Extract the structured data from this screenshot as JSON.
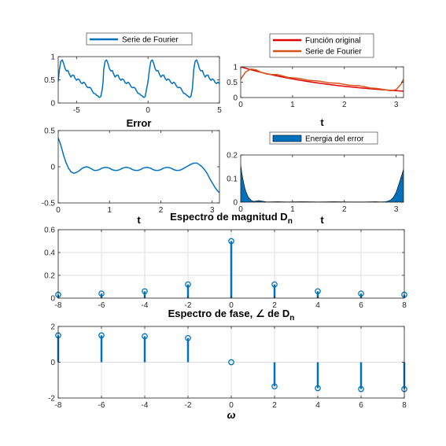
{
  "colors": {
    "blue": "#0072bd",
    "red": "#e00000",
    "orange": "#d95319",
    "axis": "#262626",
    "grid": "#dfdfdf"
  },
  "chart_data": [
    {
      "id": "p1",
      "type": "line",
      "xlim": [
        -6.2832,
        5
      ],
      "ylim": [
        0,
        1
      ],
      "xticks": [
        -5,
        0,
        5
      ],
      "yticks": [
        0,
        0.5,
        1
      ],
      "xticklabels": [
        "-5",
        "0",
        "5"
      ],
      "yticklabels": [
        "0",
        "0.5",
        "1"
      ],
      "grid": false,
      "legend": "above",
      "series": [
        {
          "name": "Serie de Fourier",
          "color": "#0072bd",
          "x": [
            -6.283,
            -6.2,
            -6.1,
            -6.0,
            -5.9,
            -5.8,
            -5.7,
            -5.6,
            -5.5,
            -5.4,
            -5.3,
            -5.2,
            -5.1,
            -5.0,
            -4.9,
            -4.8,
            -4.7,
            -4.6,
            -4.5,
            -4.4,
            -4.3,
            -4.2,
            -4.1,
            -4.0,
            -3.9,
            -3.8,
            -3.7,
            -3.6,
            -3.5,
            -3.4,
            -3.3,
            -3.2,
            -3.142,
            -3.1,
            -3.0,
            -2.9,
            -2.8,
            -2.7,
            -2.6,
            -2.5,
            -2.4,
            -2.3,
            -2.2,
            -2.1,
            -2.0,
            -1.9,
            -1.8,
            -1.7,
            -1.6,
            -1.5,
            -1.4,
            -1.3,
            -1.2,
            -1.1,
            -1.0,
            -0.9,
            -0.8,
            -0.7,
            -0.6,
            -0.5,
            -0.4,
            -0.3,
            -0.2,
            -0.1,
            0.0,
            0.1,
            0.2,
            0.3,
            0.4,
            0.5,
            0.6,
            0.7,
            0.8,
            0.9,
            1.0,
            1.1,
            1.2,
            1.3,
            1.4,
            1.5,
            1.6,
            1.7,
            1.8,
            1.9,
            2.0,
            2.1,
            2.2,
            2.3,
            2.4,
            2.5,
            2.6,
            2.7,
            2.8,
            2.9,
            3.0,
            3.1,
            3.142,
            3.2,
            3.3,
            3.4,
            3.5,
            3.6,
            3.7,
            3.8,
            3.9,
            4.0,
            4.1,
            4.2,
            4.3,
            4.4,
            4.5,
            4.6,
            4.7,
            4.8,
            4.9,
            5.0
          ],
          "y": [
            0.46,
            0.72,
            0.9,
            0.93,
            0.85,
            0.74,
            0.69,
            0.7,
            0.62,
            0.56,
            0.6,
            0.6,
            0.53,
            0.49,
            0.52,
            0.5,
            0.44,
            0.42,
            0.45,
            0.42,
            0.36,
            0.33,
            0.34,
            0.32,
            0.26,
            0.21,
            0.2,
            0.17,
            0.15,
            0.12,
            0.14,
            0.3,
            0.46,
            0.72,
            0.9,
            0.93,
            0.85,
            0.74,
            0.69,
            0.7,
            0.62,
            0.56,
            0.6,
            0.6,
            0.53,
            0.49,
            0.52,
            0.5,
            0.44,
            0.42,
            0.45,
            0.42,
            0.36,
            0.33,
            0.34,
            0.32,
            0.26,
            0.21,
            0.2,
            0.17,
            0.15,
            0.12,
            0.14,
            0.3,
            0.46,
            0.72,
            0.9,
            0.93,
            0.85,
            0.74,
            0.69,
            0.7,
            0.62,
            0.56,
            0.6,
            0.6,
            0.53,
            0.49,
            0.52,
            0.5,
            0.44,
            0.42,
            0.45,
            0.42,
            0.36,
            0.33,
            0.34,
            0.32,
            0.26,
            0.21,
            0.2,
            0.17,
            0.15,
            0.12,
            0.14,
            0.3,
            0.46,
            0.72,
            0.9,
            0.93,
            0.85,
            0.74,
            0.69,
            0.7,
            0.62,
            0.56,
            0.6,
            0.6,
            0.53,
            0.49,
            0.52,
            0.5,
            0.44,
            0.42,
            0.45,
            0.42
          ]
        }
      ]
    },
    {
      "id": "p2",
      "type": "line",
      "xlim": [
        0,
        3.1416
      ],
      "ylim": [
        0,
        1
      ],
      "xticks": [
        0,
        1,
        2,
        3
      ],
      "yticks": [
        0,
        0.5,
        1
      ],
      "xticklabels": [
        "0",
        "1",
        "2",
        "3"
      ],
      "yticklabels": [
        "0",
        "0.5",
        "1"
      ],
      "xlabel": "t",
      "grid": false,
      "legend": "above",
      "series": [
        {
          "name": "Función original",
          "color": "#e00000",
          "x": [
            0,
            0.157,
            0.314,
            0.471,
            0.628,
            0.785,
            0.942,
            1.1,
            1.257,
            1.414,
            1.571,
            1.728,
            1.885,
            2.042,
            2.199,
            2.356,
            2.513,
            2.67,
            2.827,
            2.985,
            3.142
          ],
          "y": [
            1.0,
            0.924,
            0.855,
            0.79,
            0.73,
            0.675,
            0.624,
            0.577,
            0.533,
            0.493,
            0.456,
            0.421,
            0.389,
            0.36,
            0.333,
            0.307,
            0.284,
            0.263,
            0.243,
            0.224,
            0.208
          ]
        },
        {
          "name": "Serie de Fourier",
          "color": "#d95319",
          "x": [
            0.0,
            0.1,
            0.2,
            0.3,
            0.4,
            0.5,
            0.6,
            0.7,
            0.8,
            0.9,
            1.0,
            1.1,
            1.2,
            1.3,
            1.4,
            1.5,
            1.6,
            1.7,
            1.8,
            1.9,
            2.0,
            2.1,
            2.2,
            2.3,
            2.4,
            2.5,
            2.6,
            2.7,
            2.8,
            2.9,
            3.0,
            3.1,
            3.142
          ],
          "y": [
            0.6,
            0.84,
            0.93,
            0.9,
            0.82,
            0.77,
            0.75,
            0.75,
            0.71,
            0.66,
            0.64,
            0.63,
            0.6,
            0.56,
            0.55,
            0.54,
            0.51,
            0.48,
            0.47,
            0.46,
            0.43,
            0.4,
            0.39,
            0.38,
            0.35,
            0.31,
            0.3,
            0.28,
            0.25,
            0.22,
            0.26,
            0.45,
            0.6
          ]
        }
      ]
    },
    {
      "id": "p3",
      "type": "line",
      "title": "Error",
      "xlim": [
        0,
        3.1416
      ],
      "ylim": [
        -0.5,
        0.5
      ],
      "xticks": [
        0,
        1,
        2,
        3
      ],
      "yticks": [
        -0.5,
        0,
        0.5
      ],
      "xticklabels": [
        "0",
        "1",
        "2",
        "3"
      ],
      "yticklabels": [
        "-0.5",
        "0",
        "0.5"
      ],
      "xlabel": "t",
      "grid": false,
      "series": [
        {
          "color": "#0072bd",
          "x": [
            0.0,
            0.05,
            0.1,
            0.15,
            0.2,
            0.25,
            0.3,
            0.35,
            0.4,
            0.45,
            0.5,
            0.55,
            0.6,
            0.65,
            0.7,
            0.75,
            0.8,
            0.85,
            0.9,
            0.95,
            1.0,
            1.05,
            1.1,
            1.15,
            1.2,
            1.25,
            1.3,
            1.35,
            1.4,
            1.45,
            1.5,
            1.55,
            1.6,
            1.65,
            1.7,
            1.75,
            1.8,
            1.85,
            1.9,
            1.95,
            2.0,
            2.05,
            2.1,
            2.15,
            2.2,
            2.25,
            2.3,
            2.35,
            2.4,
            2.45,
            2.5,
            2.55,
            2.6,
            2.65,
            2.7,
            2.75,
            2.8,
            2.85,
            2.9,
            2.95,
            3.0,
            3.05,
            3.1,
            3.142
          ],
          "y": [
            0.4,
            0.3,
            0.17,
            0.06,
            -0.02,
            -0.07,
            -0.09,
            -0.08,
            -0.06,
            -0.03,
            -0.01,
            0.0,
            -0.01,
            -0.03,
            -0.05,
            -0.05,
            -0.04,
            -0.02,
            -0.01,
            -0.01,
            -0.02,
            -0.04,
            -0.05,
            -0.05,
            -0.04,
            -0.02,
            -0.01,
            -0.01,
            -0.02,
            -0.04,
            -0.05,
            -0.05,
            -0.04,
            -0.02,
            -0.01,
            -0.01,
            -0.02,
            -0.04,
            -0.05,
            -0.05,
            -0.04,
            -0.02,
            -0.01,
            -0.01,
            -0.02,
            -0.04,
            -0.05,
            -0.05,
            -0.04,
            -0.02,
            0.0,
            0.02,
            0.04,
            0.05,
            0.05,
            0.03,
            0.0,
            -0.04,
            -0.09,
            -0.16,
            -0.22,
            -0.28,
            -0.33,
            -0.36
          ]
        }
      ]
    },
    {
      "id": "p4",
      "type": "area",
      "xlim": [
        0,
        3.1416
      ],
      "ylim": [
        0,
        0.2
      ],
      "xticks": [
        0,
        1,
        2,
        3
      ],
      "yticks": [
        0,
        0.1,
        0.2
      ],
      "xticklabels": [
        "0",
        "1",
        "2",
        "3"
      ],
      "yticklabels": [
        "0",
        "0.1",
        "0.2"
      ],
      "xlabel": "t",
      "grid": false,
      "legend": "above",
      "series": [
        {
          "name": "Energia del error",
          "color": "#0072bd",
          "x": [
            0,
            0.02,
            0.05,
            0.08,
            0.1,
            0.15,
            0.2,
            0.25,
            0.3,
            0.35,
            0.4,
            0.5,
            0.7,
            0.9,
            1.2,
            1.5,
            1.8,
            2.1,
            2.4,
            2.6,
            2.7,
            2.8,
            2.85,
            2.9,
            2.95,
            3.0,
            3.05,
            3.1,
            3.142
          ],
          "y": [
            0.16,
            0.125,
            0.09,
            0.06,
            0.045,
            0.02,
            0.008,
            0.003,
            0.005,
            0.007,
            0.005,
            0.001,
            0.002,
            0.001,
            0.002,
            0.001,
            0.002,
            0.001,
            0.001,
            0.002,
            0.001,
            0.002,
            0.005,
            0.01,
            0.022,
            0.042,
            0.075,
            0.11,
            0.14
          ]
        }
      ]
    },
    {
      "id": "p5",
      "type": "stem",
      "title": "Espectro de magnitud D",
      "title_sub": "n",
      "xlim": [
        -8,
        8
      ],
      "ylim": [
        0,
        0.6
      ],
      "xticks": [
        -8,
        -6,
        -4,
        -2,
        0,
        2,
        4,
        6,
        8
      ],
      "yticks": [
        0,
        0.2,
        0.4,
        0.6
      ],
      "xticklabels": [
        "-8",
        "-6",
        "-4",
        "-2",
        "0",
        "2",
        "4",
        "6",
        "8"
      ],
      "yticklabels": [
        "0",
        "0.2",
        "0.4",
        "0.6"
      ],
      "grid": true,
      "series": [
        {
          "color": "#0072bd",
          "x": [
            -8,
            -6,
            -4,
            -2,
            0,
            2,
            4,
            6,
            8
          ],
          "y": [
            0.03,
            0.04,
            0.06,
            0.12,
            0.5,
            0.12,
            0.06,
            0.04,
            0.03
          ]
        }
      ]
    },
    {
      "id": "p6",
      "type": "stem",
      "title": "Espectro de fase, ∠ de D",
      "title_sub": "n",
      "xlim": [
        -8,
        8
      ],
      "ylim": [
        -2,
        2
      ],
      "xticks": [
        -8,
        -6,
        -4,
        -2,
        0,
        2,
        4,
        6,
        8
      ],
      "yticks": [
        -2,
        0,
        2
      ],
      "xticklabels": [
        "-8",
        "-6",
        "-4",
        "-2",
        "0",
        "2",
        "4",
        "6",
        "8"
      ],
      "yticklabels": [
        "-2",
        "0",
        "2"
      ],
      "xlabel": "ω",
      "grid": true,
      "series": [
        {
          "color": "#0072bd",
          "x": [
            -8,
            -6,
            -4,
            -2,
            0,
            2,
            4,
            6,
            8
          ],
          "y": [
            1.5,
            1.5,
            1.45,
            1.35,
            0,
            -1.35,
            -1.45,
            -1.5,
            -1.5
          ]
        }
      ]
    }
  ]
}
